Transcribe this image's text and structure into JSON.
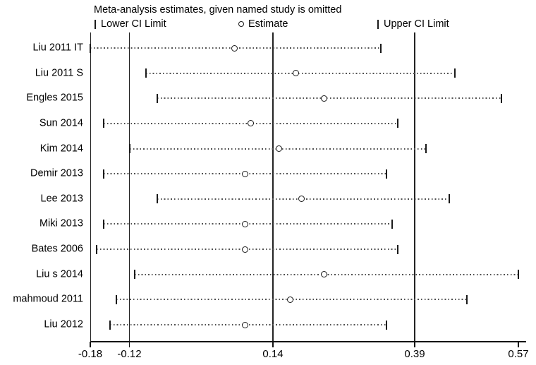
{
  "title": "Meta-analysis estimates, given named study is omitted",
  "legend": {
    "items": [
      {
        "marker": "bar",
        "label": "Lower CI Limit"
      },
      {
        "marker": "circle",
        "label": "Estimate"
      },
      {
        "marker": "bar",
        "label": "Upper CI Limit"
      }
    ]
  },
  "colors": {
    "line": "#1a1a1a",
    "dotted_ci": "#4f4f4f",
    "background": "#ffffff",
    "text": "#000000"
  },
  "chart_data": {
    "type": "scatter",
    "subtype": "leave-one-out-forest-plot",
    "title": "Meta-analysis estimates, given named study is omitted",
    "xlabel": "",
    "ylabel": "",
    "xlim": [
      -0.18,
      0.57
    ],
    "grid": false,
    "legend_position": "top",
    "ref_lines": [
      -0.12,
      0.14,
      0.39
    ],
    "xticks": [
      {
        "value": -0.18,
        "label": "-0.18"
      },
      {
        "value": -0.12,
        "label": "-0.12"
      },
      {
        "value": 0.14,
        "label": "0.14"
      },
      {
        "value": 0.39,
        "label": "0.39"
      },
      {
        "value": 0.57,
        "label": "0.57"
      }
    ],
    "studies": [
      {
        "study": "Liu 2011 IT",
        "lower": -0.18,
        "estimate": 0.07,
        "upper": 0.33
      },
      {
        "study": "Liu 2011 S",
        "lower": -0.09,
        "estimate": 0.18,
        "upper": 0.46
      },
      {
        "study": "Engles 2015",
        "lower": -0.07,
        "estimate": 0.23,
        "upper": 0.54
      },
      {
        "study": "Sun 2014",
        "lower": -0.16,
        "estimate": 0.1,
        "upper": 0.36
      },
      {
        "study": "Kim 2014",
        "lower": -0.12,
        "estimate": 0.15,
        "upper": 0.41
      },
      {
        "study": "Demir 2013",
        "lower": -0.16,
        "estimate": 0.09,
        "upper": 0.34
      },
      {
        "study": "Lee 2013",
        "lower": -0.07,
        "estimate": 0.19,
        "upper": 0.45
      },
      {
        "study": "Miki 2013",
        "lower": -0.16,
        "estimate": 0.09,
        "upper": 0.35
      },
      {
        "study": "Bates 2006",
        "lower": -0.17,
        "estimate": 0.09,
        "upper": 0.36
      },
      {
        "study": "Liu s 2014",
        "lower": -0.11,
        "estimate": 0.23,
        "upper": 0.57
      },
      {
        "study": "mahmoud 2011",
        "lower": -0.14,
        "estimate": 0.17,
        "upper": 0.48
      },
      {
        "study": "Liu 2012",
        "lower": -0.15,
        "estimate": 0.09,
        "upper": 0.34
      }
    ]
  }
}
